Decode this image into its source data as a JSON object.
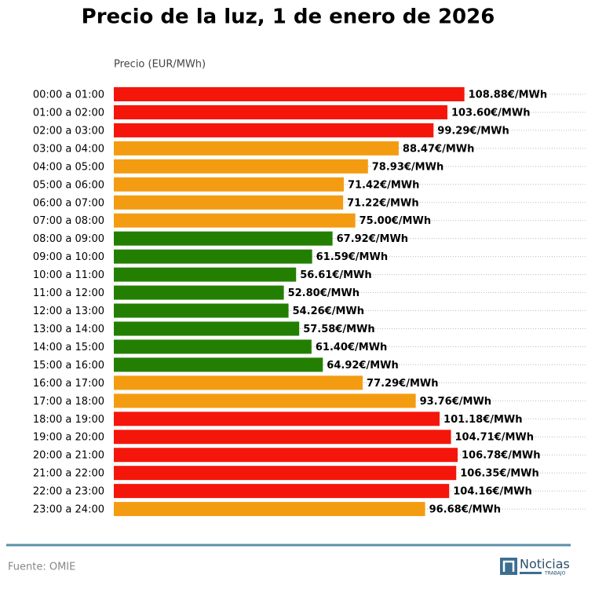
{
  "chart_data": {
    "type": "hbar",
    "title": "Precio de la luz, 1 de enero de 2026",
    "x_label": "Precio (EUR/MWh)",
    "categories": [
      "00:00 a 01:00",
      "01:00 a 02:00",
      "02:00 a 03:00",
      "03:00 a 04:00",
      "04:00 a 05:00",
      "05:00 a 06:00",
      "06:00 a 07:00",
      "07:00 a 08:00",
      "08:00 a 09:00",
      "09:00 a 10:00",
      "10:00 a 11:00",
      "11:00 a 12:00",
      "12:00 a 13:00",
      "13:00 a 14:00",
      "14:00 a 15:00",
      "15:00 a 16:00",
      "16:00 a 17:00",
      "17:00 a 18:00",
      "18:00 a 19:00",
      "19:00 a 20:00",
      "20:00 a 21:00",
      "21:00 a 22:00",
      "22:00 a 23:00",
      "23:00 a 24:00"
    ],
    "values": [
      108.88,
      103.6,
      99.29,
      88.47,
      78.93,
      71.42,
      71.22,
      75.0,
      67.92,
      61.59,
      56.61,
      52.8,
      54.26,
      57.58,
      61.4,
      64.92,
      77.29,
      93.76,
      101.18,
      104.71,
      106.78,
      106.35,
      104.16,
      96.68
    ],
    "value_labels": [
      "108.88€/MWh",
      "103.60€/MWh",
      "99.29€/MWh",
      "88.47€/MWh",
      "78.93€/MWh",
      "71.42€/MWh",
      "71.22€/MWh",
      "75.00€/MWh",
      "67.92€/MWh",
      "61.59€/MWh",
      "56.61€/MWh",
      "52.80€/MWh",
      "54.26€/MWh",
      "57.58€/MWh",
      "61.40€/MWh",
      "64.92€/MWh",
      "77.29€/MWh",
      "93.76€/MWh",
      "101.18€/MWh",
      "104.71€/MWh",
      "106.78€/MWh",
      "106.35€/MWh",
      "104.16€/MWh",
      "96.68€/MWh"
    ],
    "colors": [
      "#f5160b",
      "#f5160b",
      "#f5160b",
      "#f39c12",
      "#f39c12",
      "#f39c12",
      "#f39c12",
      "#f39c12",
      "#237f01",
      "#237f01",
      "#237f01",
      "#237f01",
      "#237f01",
      "#237f01",
      "#237f01",
      "#237f01",
      "#f39c12",
      "#f39c12",
      "#f5160b",
      "#f5160b",
      "#f5160b",
      "#f5160b",
      "#f5160b",
      "#f39c12"
    ],
    "xlim": [
      0,
      147
    ],
    "source": "Fuente: OMIE",
    "logo": "Noticias",
    "logo_sub": "TRABAJO"
  }
}
